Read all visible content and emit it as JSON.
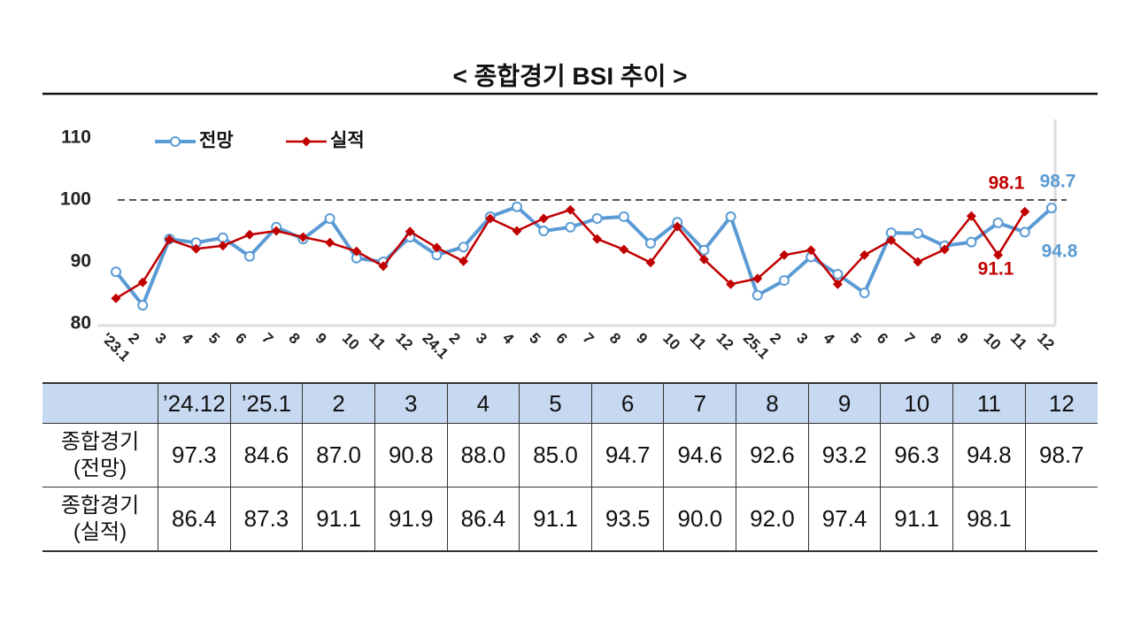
{
  "title": "< 종합경기 BSI 추이 >",
  "chart_data": {
    "type": "line",
    "categories": [
      "'23.1",
      "2",
      "3",
      "4",
      "5",
      "6",
      "7",
      "8",
      "9",
      "10",
      "11",
      "12",
      "24.1",
      "2",
      "3",
      "4",
      "5",
      "6",
      "7",
      "8",
      "9",
      "10",
      "11",
      "12",
      "25.1",
      "2",
      "3",
      "4",
      "5",
      "6",
      "7",
      "8",
      "9",
      "10",
      "11",
      "12"
    ],
    "series": [
      {
        "name": "전망",
        "color": "#5b9bd5",
        "marker": "circle",
        "values": [
          88.4,
          83.0,
          93.7,
          93.1,
          93.9,
          90.9,
          95.6,
          93.7,
          97.0,
          90.6,
          90.0,
          94.0,
          91.1,
          92.4,
          97.3,
          98.9,
          95.0,
          95.6,
          97.0,
          97.3,
          93.0,
          96.4,
          91.9,
          97.3,
          84.6,
          87.0,
          90.8,
          88.0,
          85.0,
          94.7,
          94.6,
          92.6,
          93.2,
          96.3,
          94.8,
          98.7
        ],
        "value_labels": [
          null,
          null,
          null,
          null,
          null,
          null,
          null,
          null,
          null,
          null,
          null,
          null,
          null,
          null,
          null,
          null,
          null,
          null,
          null,
          null,
          null,
          null,
          null,
          null,
          null,
          null,
          null,
          null,
          null,
          null,
          null,
          null,
          null,
          null,
          "94.8",
          "98.7"
        ]
      },
      {
        "name": "실적",
        "color": "#c00000",
        "marker": "diamond",
        "values": [
          84.1,
          86.7,
          93.6,
          92.1,
          92.6,
          94.4,
          95.0,
          94.0,
          93.1,
          91.7,
          89.3,
          94.9,
          92.3,
          90.1,
          97.0,
          95.0,
          97.0,
          98.4,
          93.7,
          92.0,
          89.9,
          95.7,
          90.4,
          86.4,
          87.3,
          91.1,
          91.9,
          86.4,
          91.1,
          93.5,
          90.0,
          92.0,
          97.4,
          91.1,
          98.1,
          null
        ],
        "value_labels": [
          null,
          null,
          null,
          null,
          null,
          null,
          null,
          null,
          null,
          null,
          null,
          null,
          null,
          null,
          null,
          null,
          null,
          null,
          null,
          null,
          null,
          null,
          null,
          null,
          null,
          null,
          null,
          null,
          null,
          null,
          null,
          null,
          null,
          "91.1",
          "98.1",
          null
        ]
      }
    ],
    "ylim": [
      80,
      110
    ],
    "yticks": [
      80,
      90,
      100,
      110
    ],
    "reference_line": 100,
    "legend": "top-left"
  },
  "table": {
    "header": [
      "’24.12",
      "’25.1",
      "2",
      "3",
      "4",
      "5",
      "6",
      "7",
      "8",
      "9",
      "10",
      "11",
      "12"
    ],
    "rows": [
      {
        "label": [
          "종합경기",
          "(전망)"
        ],
        "cells": [
          "97.3",
          "84.6",
          "87.0",
          "90.8",
          "88.0",
          "85.0",
          "94.7",
          "94.6",
          "92.6",
          "93.2",
          "96.3",
          "94.8",
          "98.7"
        ]
      },
      {
        "label": [
          "종합경기",
          "(실적)"
        ],
        "cells": [
          "86.4",
          "87.3",
          "91.1",
          "91.9",
          "86.4",
          "91.1",
          "93.5",
          "90.0",
          "92.0",
          "97.4",
          "91.1",
          "98.1"
        ]
      }
    ]
  }
}
